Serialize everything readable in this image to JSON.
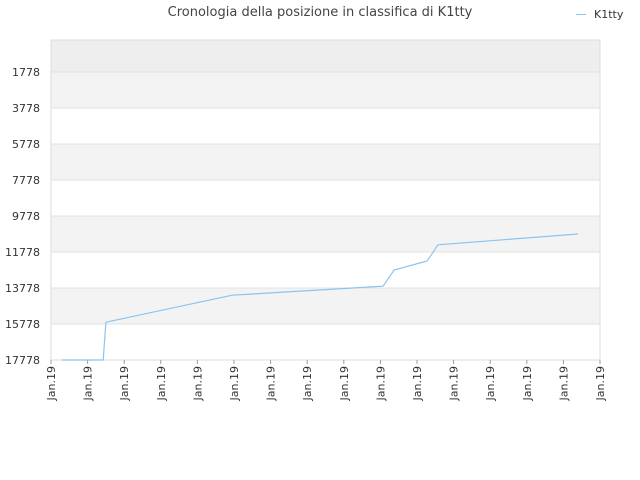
{
  "chart_data": {
    "type": "line",
    "title": "Cronologia della posizione in classifica di K1tty",
    "legend": {
      "position": "top-right",
      "entries": [
        "K1tty"
      ]
    },
    "series": [
      {
        "name": "K1tty",
        "color": "#8cc4ee",
        "x": [
          0.02,
          0.095,
          0.1,
          0.33,
          0.605,
          0.625,
          0.685,
          0.705,
          0.96
        ],
        "y": [
          17778,
          17778,
          15678,
          14178,
          13678,
          12778,
          12278,
          11378,
          10778
        ]
      }
    ],
    "yaxis": {
      "reversed": true,
      "ylim": [
        0,
        17778
      ],
      "ticks": [
        "1778",
        "3778",
        "5778",
        "7778",
        "9778",
        "11778",
        "13778",
        "15778",
        "17778"
      ]
    },
    "xaxis": {
      "ticks": [
        "Jan.19",
        "Jan.19",
        "Jan.19",
        "Jan.19",
        "Jan.19",
        "Jan.19",
        "Jan.19",
        "Jan.19",
        "Jan.19",
        "Jan.19",
        "Jan.19",
        "Jan.19",
        "Jan.19",
        "Jan.19",
        "Jan.19",
        "Jan.19"
      ]
    },
    "bands": [
      "#eeeeee",
      "#f3f3f3",
      "#ffffff",
      "#f3f3f3",
      "#ffffff",
      "#f3f3f3",
      "#ffffff",
      "#f3f3f3",
      "#ffffff",
      "#f3f3f3"
    ],
    "grid": true
  }
}
